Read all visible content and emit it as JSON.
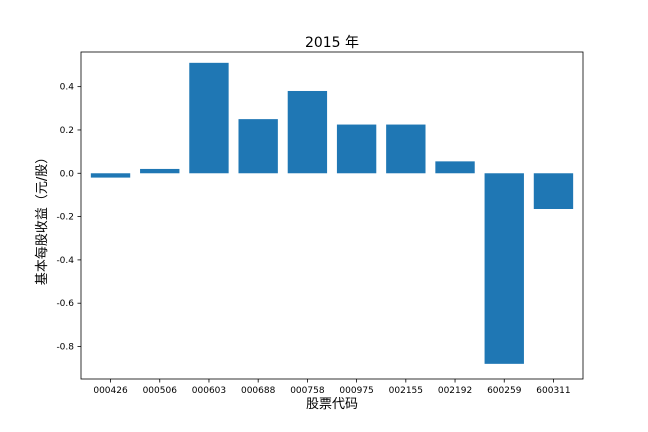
{
  "chart_data": {
    "type": "bar",
    "title": "2015 年",
    "xlabel": "股票代码",
    "ylabel": "基本每股收益（元/股）",
    "categories": [
      "000426",
      "000506",
      "000603",
      "000688",
      "000758",
      "000975",
      "002155",
      "002192",
      "600259",
      "600311"
    ],
    "values": [
      -0.02,
      0.02,
      0.51,
      0.25,
      0.38,
      0.225,
      0.225,
      0.055,
      -0.88,
      -0.165
    ],
    "ylim": [
      -0.95,
      0.56
    ],
    "yticks": [
      -0.8,
      -0.6,
      -0.4,
      -0.2,
      0.0,
      0.2,
      0.4
    ],
    "ytick_labels": [
      "-0.8",
      "-0.6",
      "-0.4",
      "-0.2",
      "0.0",
      "0.2",
      "0.4"
    ],
    "bar_color": "#1f77b4",
    "grid": false,
    "legend": "none"
  }
}
